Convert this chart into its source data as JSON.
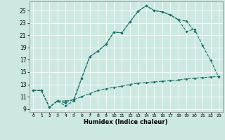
{
  "xlabel": "Humidex (Indice chaleur)",
  "bg_color": "#cce8e0",
  "grid_color": "#ffffff",
  "line_color": "#1a7068",
  "xlim": [
    -0.5,
    23.5
  ],
  "ylim": [
    8.5,
    26.5
  ],
  "xticks": [
    0,
    1,
    2,
    3,
    4,
    5,
    6,
    7,
    8,
    9,
    10,
    11,
    12,
    13,
    14,
    15,
    16,
    17,
    18,
    19,
    20,
    21,
    22,
    23
  ],
  "yticks": [
    9,
    11,
    13,
    15,
    17,
    19,
    21,
    23,
    25
  ],
  "line1_x": [
    0,
    1,
    2,
    3,
    4,
    5,
    6,
    7,
    8,
    9,
    10,
    11,
    12,
    13,
    14,
    15,
    16,
    17,
    18,
    19,
    20
  ],
  "line1_y": [
    12,
    12,
    9.3,
    10.3,
    10.0,
    10.5,
    14.0,
    17.5,
    18.4,
    19.5,
    21.5,
    21.4,
    23.2,
    24.9,
    25.8,
    25.0,
    24.8,
    24.3,
    23.5,
    23.3,
    21.6
  ],
  "line2_x": [
    0,
    1,
    2,
    3,
    4,
    5,
    6,
    7,
    8,
    9,
    10,
    11,
    12,
    13,
    14,
    15,
    16,
    17,
    18,
    19,
    20,
    21,
    22,
    23
  ],
  "line2_y": [
    12,
    12,
    9.3,
    10.3,
    9.5,
    10.3,
    14.0,
    17.5,
    18.4,
    19.5,
    21.5,
    21.4,
    23.2,
    24.9,
    25.8,
    25.0,
    24.8,
    24.3,
    23.5,
    21.6,
    22.0,
    19.3,
    16.9,
    14.2
  ],
  "line3_x": [
    0,
    1,
    2,
    3,
    4,
    5,
    6,
    7,
    8,
    9,
    10,
    11,
    12,
    13,
    14,
    15,
    16,
    17,
    18,
    19,
    20,
    21,
    22,
    23
  ],
  "line3_y": [
    12,
    12,
    9.3,
    10.3,
    10.3,
    10.5,
    11.0,
    11.5,
    12.0,
    12.3,
    12.5,
    12.7,
    13.0,
    13.2,
    13.3,
    13.4,
    13.5,
    13.6,
    13.7,
    13.9,
    14.0,
    14.1,
    14.2,
    14.3
  ]
}
